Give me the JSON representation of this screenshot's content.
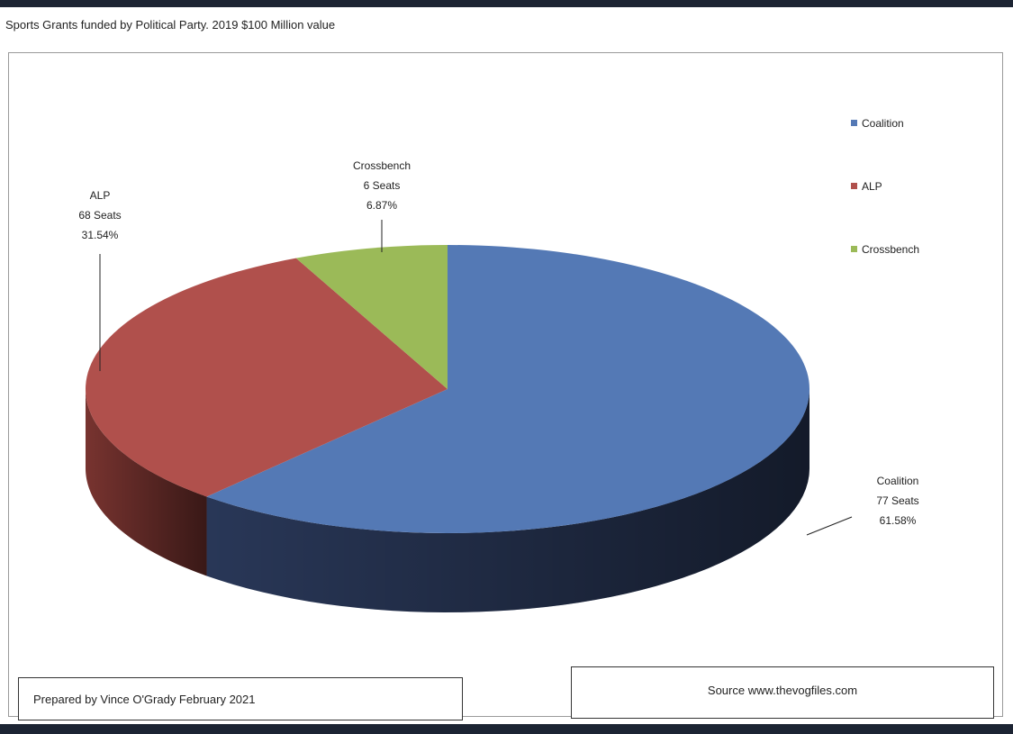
{
  "title": "Sports Grants funded by Political Party. 2019 $100 Million value",
  "footer": {
    "prepared": "Prepared by Vince O'Grady February 2021",
    "source": "Source www.thevogfiles.com"
  },
  "chart_data": {
    "type": "pie",
    "style": "3d",
    "title": "",
    "legend": "right",
    "slices": [
      {
        "name": "Coalition",
        "seats_label": "77 Seats",
        "pct_label": "61.58%",
        "value": 61.58,
        "color": "#5479b5",
        "side_color": "#2b3a5c"
      },
      {
        "name": "ALP",
        "seats_label": "68 Seats",
        "pct_label": "31.54%",
        "value": 31.54,
        "color": "#b0504c",
        "side_color": "#7e3632"
      },
      {
        "name": "Crossbench",
        "seats_label": "6 Seats",
        "pct_label": "6.87%",
        "value": 6.87,
        "color": "#9bba58",
        "side_color": "#6e8a3b"
      }
    ]
  }
}
